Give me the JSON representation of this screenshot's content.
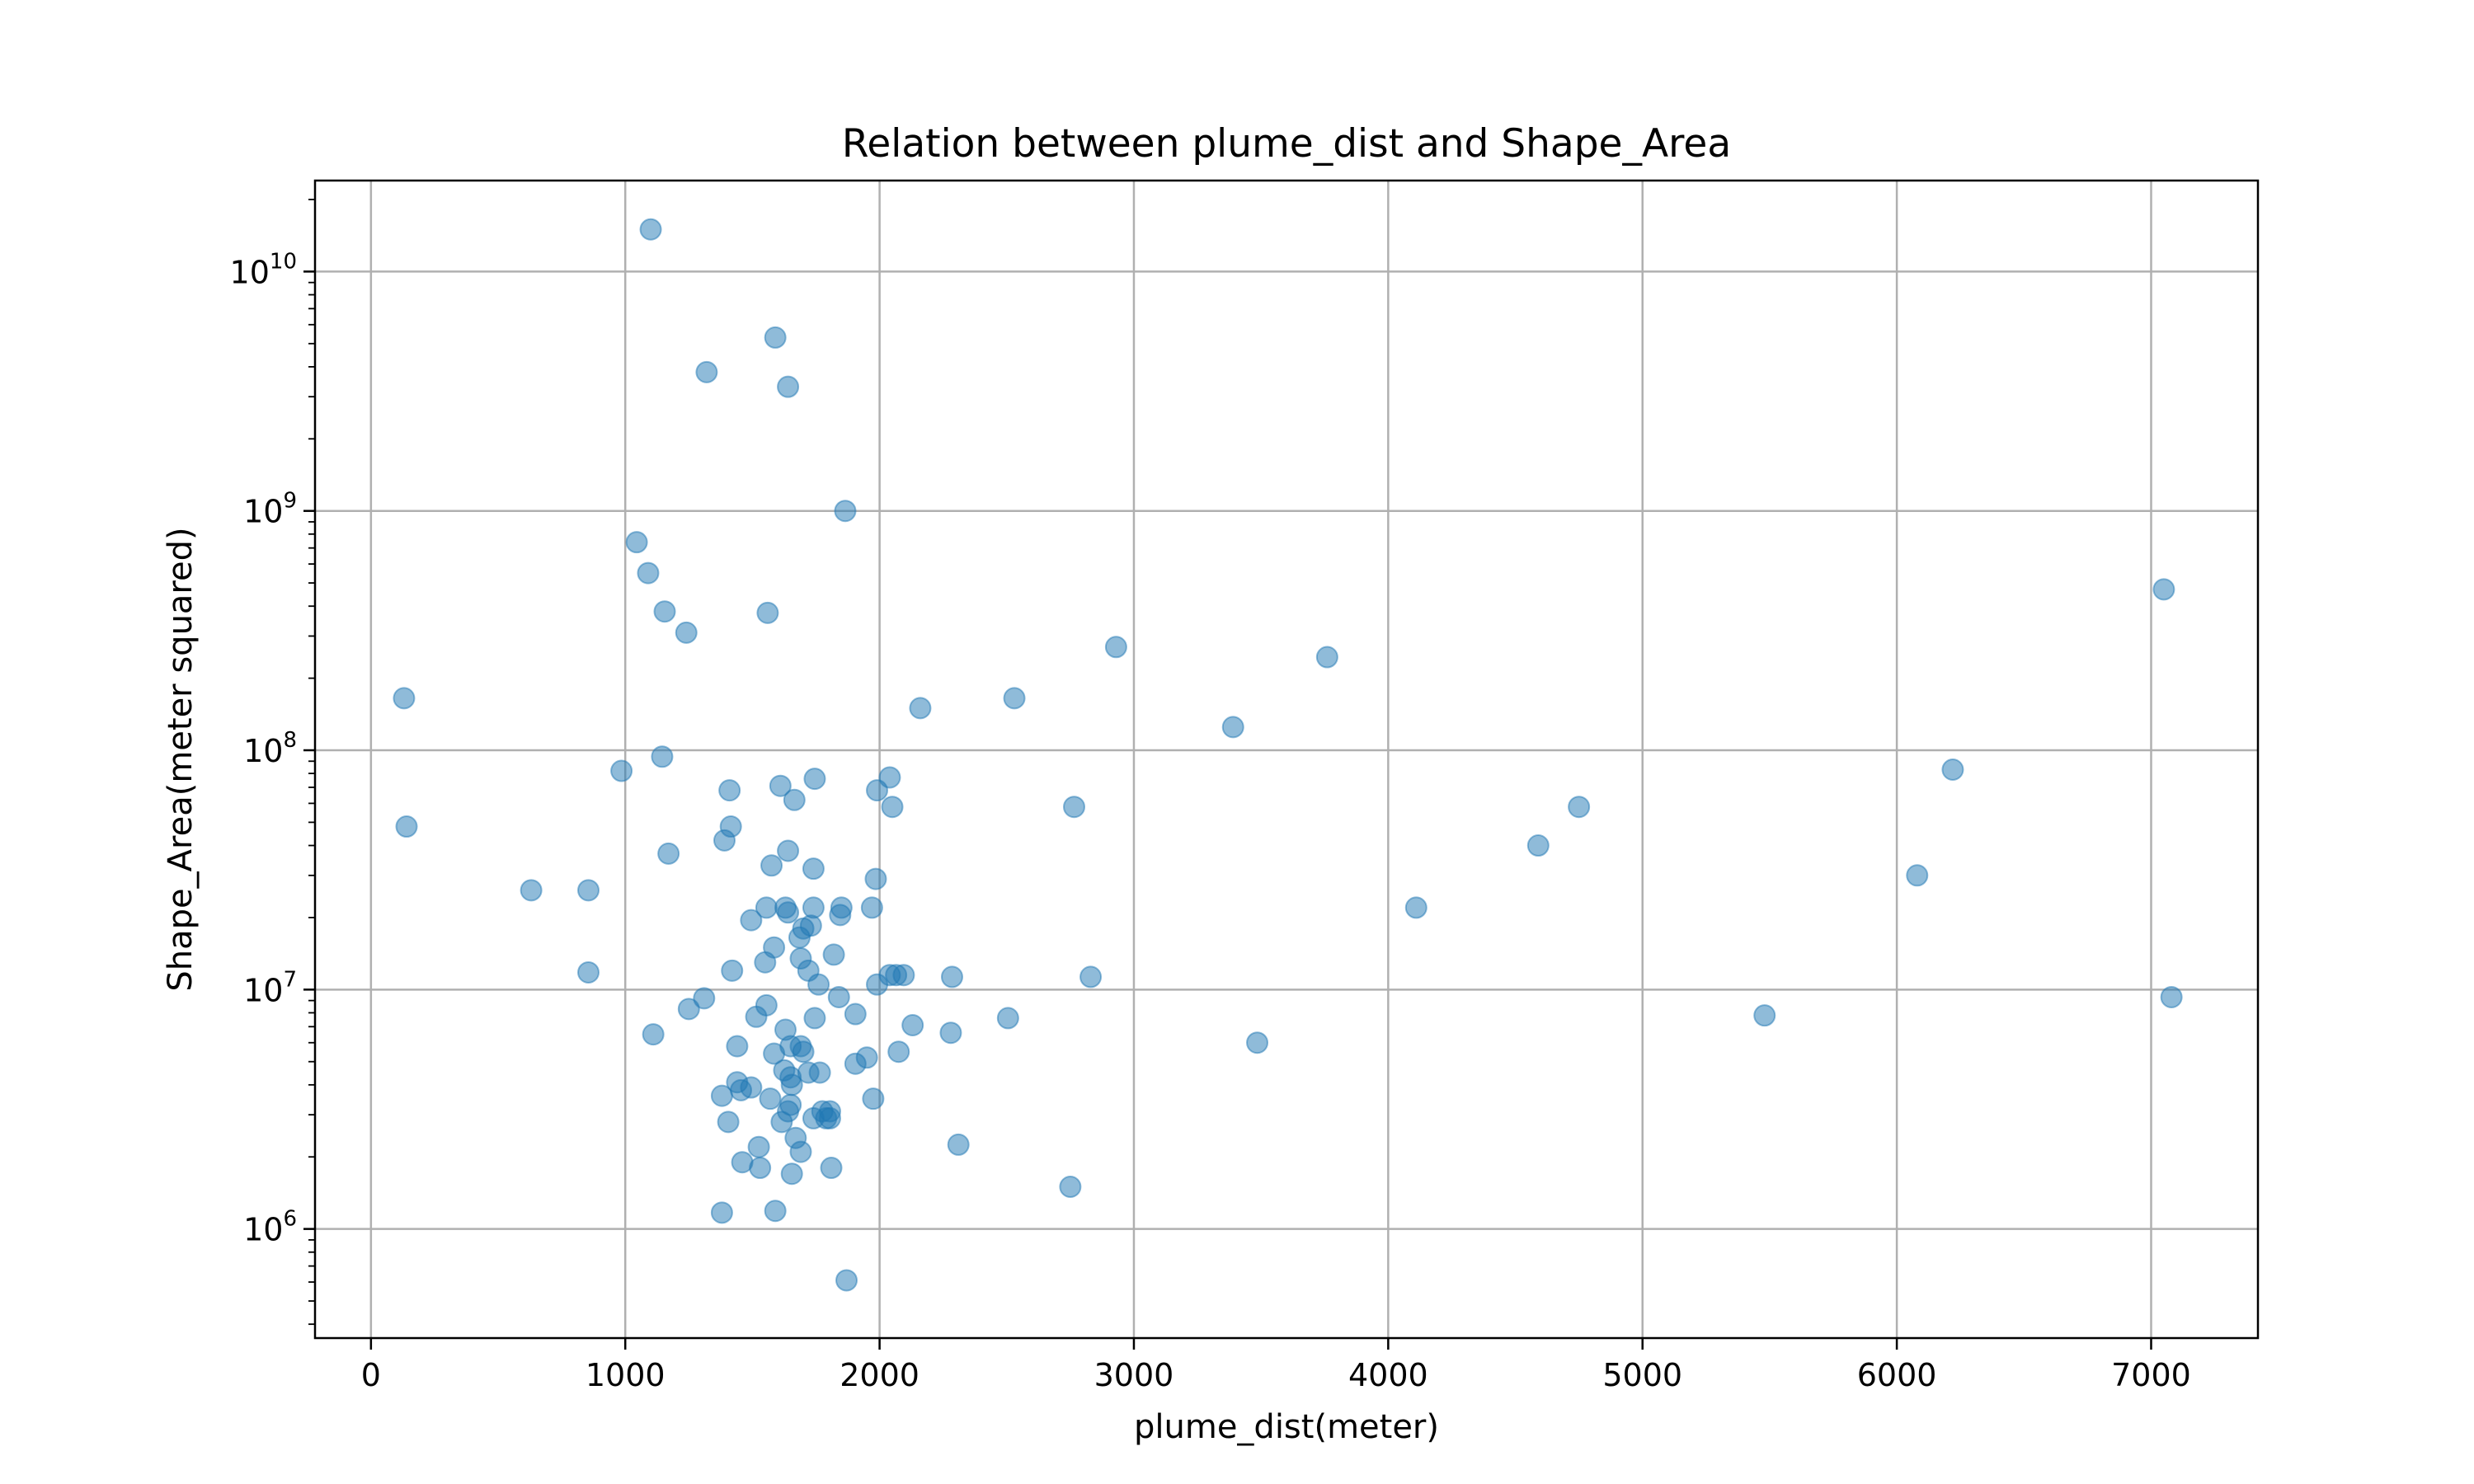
{
  "chart_data": {
    "type": "scatter",
    "title": "Relation between plume_dist and Shape_Area",
    "xlabel": "plume_dist(meter)",
    "ylabel": "Shape_Area(meter squared)",
    "xlim": [
      -220,
      7420
    ],
    "ylim": [
      350000,
      24000000000
    ],
    "yscale": "log",
    "grid": true,
    "x_ticks": [
      0,
      1000,
      2000,
      3000,
      4000,
      5000,
      6000,
      7000
    ],
    "y_ticks": [
      1000000,
      10000000,
      100000000,
      1000000000,
      10000000000
    ],
    "y_tick_labels": [
      {
        "base": "10",
        "exp": "6"
      },
      {
        "base": "10",
        "exp": "7"
      },
      {
        "base": "10",
        "exp": "8"
      },
      {
        "base": "10",
        "exp": "9"
      },
      {
        "base": "10",
        "exp": "10"
      }
    ],
    "point_color": "#1f77b4",
    "point_alpha": 0.5,
    "points": [
      [
        1100,
        15000000000
      ],
      [
        1590,
        5300000000
      ],
      [
        1320,
        3800000000
      ],
      [
        1640,
        3300000000
      ],
      [
        1865,
        1000000000
      ],
      [
        1045,
        740000000
      ],
      [
        1090,
        550000000
      ],
      [
        1155,
        380000000
      ],
      [
        1560,
        375000000
      ],
      [
        1240,
        310000000
      ],
      [
        130,
        165000000
      ],
      [
        140,
        48000000
      ],
      [
        2930,
        270000000
      ],
      [
        3760,
        245000000
      ],
      [
        2160,
        150000000
      ],
      [
        2530,
        165000000
      ],
      [
        3390,
        125000000
      ],
      [
        7050,
        470000000
      ],
      [
        7080,
        9300000
      ],
      [
        1145,
        94000000
      ],
      [
        985,
        82000000
      ],
      [
        1410,
        68000000
      ],
      [
        1610,
        71000000
      ],
      [
        1745,
        76000000
      ],
      [
        1665,
        62000000
      ],
      [
        2040,
        77000000
      ],
      [
        1990,
        68000000
      ],
      [
        2050,
        58000000
      ],
      [
        2765,
        58000000
      ],
      [
        1415,
        48000000
      ],
      [
        1390,
        42000000
      ],
      [
        1640,
        38000000
      ],
      [
        1170,
        37000000
      ],
      [
        1575,
        33000000
      ],
      [
        1740,
        32000000
      ],
      [
        1985,
        29000000
      ],
      [
        630,
        26000000
      ],
      [
        855,
        26000000
      ],
      [
        1555,
        22000000
      ],
      [
        1630,
        22000000
      ],
      [
        1740,
        22000000
      ],
      [
        1850,
        22000000
      ],
      [
        1970,
        22000000
      ],
      [
        1495,
        19500000
      ],
      [
        1640,
        21000000
      ],
      [
        1845,
        20500000
      ],
      [
        1700,
        18000000
      ],
      [
        1730,
        18500000
      ],
      [
        1685,
        16500000
      ],
      [
        1585,
        15000000
      ],
      [
        1820,
        14000000
      ],
      [
        1690,
        13500000
      ],
      [
        1550,
        13000000
      ],
      [
        1420,
        12000000
      ],
      [
        1720,
        12000000
      ],
      [
        2040,
        11500000
      ],
      [
        2065,
        11500000
      ],
      [
        2095,
        11500000
      ],
      [
        2285,
        11300000
      ],
      [
        2830,
        11300000
      ],
      [
        1760,
        10500000
      ],
      [
        1990,
        10500000
      ],
      [
        855,
        11800000
      ],
      [
        1310,
        9200000
      ],
      [
        1840,
        9300000
      ],
      [
        1250,
        8300000
      ],
      [
        1555,
        8600000
      ],
      [
        1515,
        7700000
      ],
      [
        1745,
        7600000
      ],
      [
        1905,
        7900000
      ],
      [
        2130,
        7100000
      ],
      [
        2505,
        7600000
      ],
      [
        1630,
        6800000
      ],
      [
        2280,
        6600000
      ],
      [
        1110,
        6500000
      ],
      [
        3485,
        6000000
      ],
      [
        1440,
        5800000
      ],
      [
        1650,
        5800000
      ],
      [
        1690,
        5800000
      ],
      [
        1700,
        5500000
      ],
      [
        1585,
        5400000
      ],
      [
        1950,
        5200000
      ],
      [
        2075,
        5500000
      ],
      [
        1905,
        4900000
      ],
      [
        1625,
        4600000
      ],
      [
        1720,
        4500000
      ],
      [
        1765,
        4500000
      ],
      [
        1650,
        4300000
      ],
      [
        1440,
        4100000
      ],
      [
        1655,
        4000000
      ],
      [
        1495,
        3900000
      ],
      [
        1455,
        3800000
      ],
      [
        1380,
        3600000
      ],
      [
        1570,
        3500000
      ],
      [
        1975,
        3500000
      ],
      [
        1650,
        3300000
      ],
      [
        1640,
        3100000
      ],
      [
        1775,
        3100000
      ],
      [
        1805,
        3100000
      ],
      [
        1740,
        2900000
      ],
      [
        1790,
        2900000
      ],
      [
        1805,
        2900000
      ],
      [
        1405,
        2800000
      ],
      [
        1615,
        2800000
      ],
      [
        1670,
        2400000
      ],
      [
        1525,
        2200000
      ],
      [
        1690,
        2100000
      ],
      [
        2310,
        2250000
      ],
      [
        1460,
        1900000
      ],
      [
        1530,
        1800000
      ],
      [
        1655,
        1700000
      ],
      [
        1810,
        1800000
      ],
      [
        2750,
        1500000
      ],
      [
        1380,
        1170000
      ],
      [
        1590,
        1190000
      ],
      [
        1870,
        610000
      ],
      [
        4110,
        22000000
      ],
      [
        4590,
        40000000
      ],
      [
        4750,
        58000000
      ],
      [
        5480,
        7800000
      ],
      [
        6080,
        30000000
      ],
      [
        6220,
        83000000
      ]
    ]
  }
}
